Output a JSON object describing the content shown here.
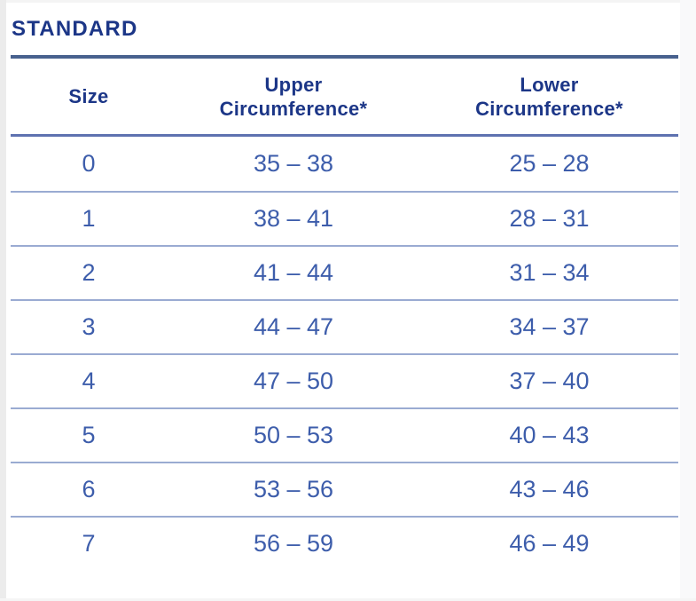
{
  "page": {
    "title": "STANDARD"
  },
  "table": {
    "headers": [
      {
        "line1": "Size",
        "line2": ""
      },
      {
        "line1": "Upper",
        "line2": "Circumference*"
      },
      {
        "line1": "Lower",
        "line2": "Circumference*"
      }
    ],
    "rows": [
      {
        "size": "0",
        "upper": "35 – 38",
        "lower": "25 – 28"
      },
      {
        "size": "1",
        "upper": "38 – 41",
        "lower": "28 – 31"
      },
      {
        "size": "2",
        "upper": "41 – 44",
        "lower": "31 – 34"
      },
      {
        "size": "3",
        "upper": "44 – 47",
        "lower": "34 – 37"
      },
      {
        "size": "4",
        "upper": "47 – 50",
        "lower": "37 – 40"
      },
      {
        "size": "5",
        "upper": "50 – 53",
        "lower": "40 – 43"
      },
      {
        "size": "6",
        "upper": "53 – 56",
        "lower": "43 – 46"
      },
      {
        "size": "7",
        "upper": "56 – 59",
        "lower": "46 – 49"
      }
    ]
  },
  "colors": {
    "title_text": "#1c3687",
    "header_text": "#1c3687",
    "data_text": "#3d5dab",
    "title_rule": "#48618e",
    "header_rule": "#5e72b0",
    "row_divider": "#9aabd2",
    "background": "#ffffff"
  }
}
